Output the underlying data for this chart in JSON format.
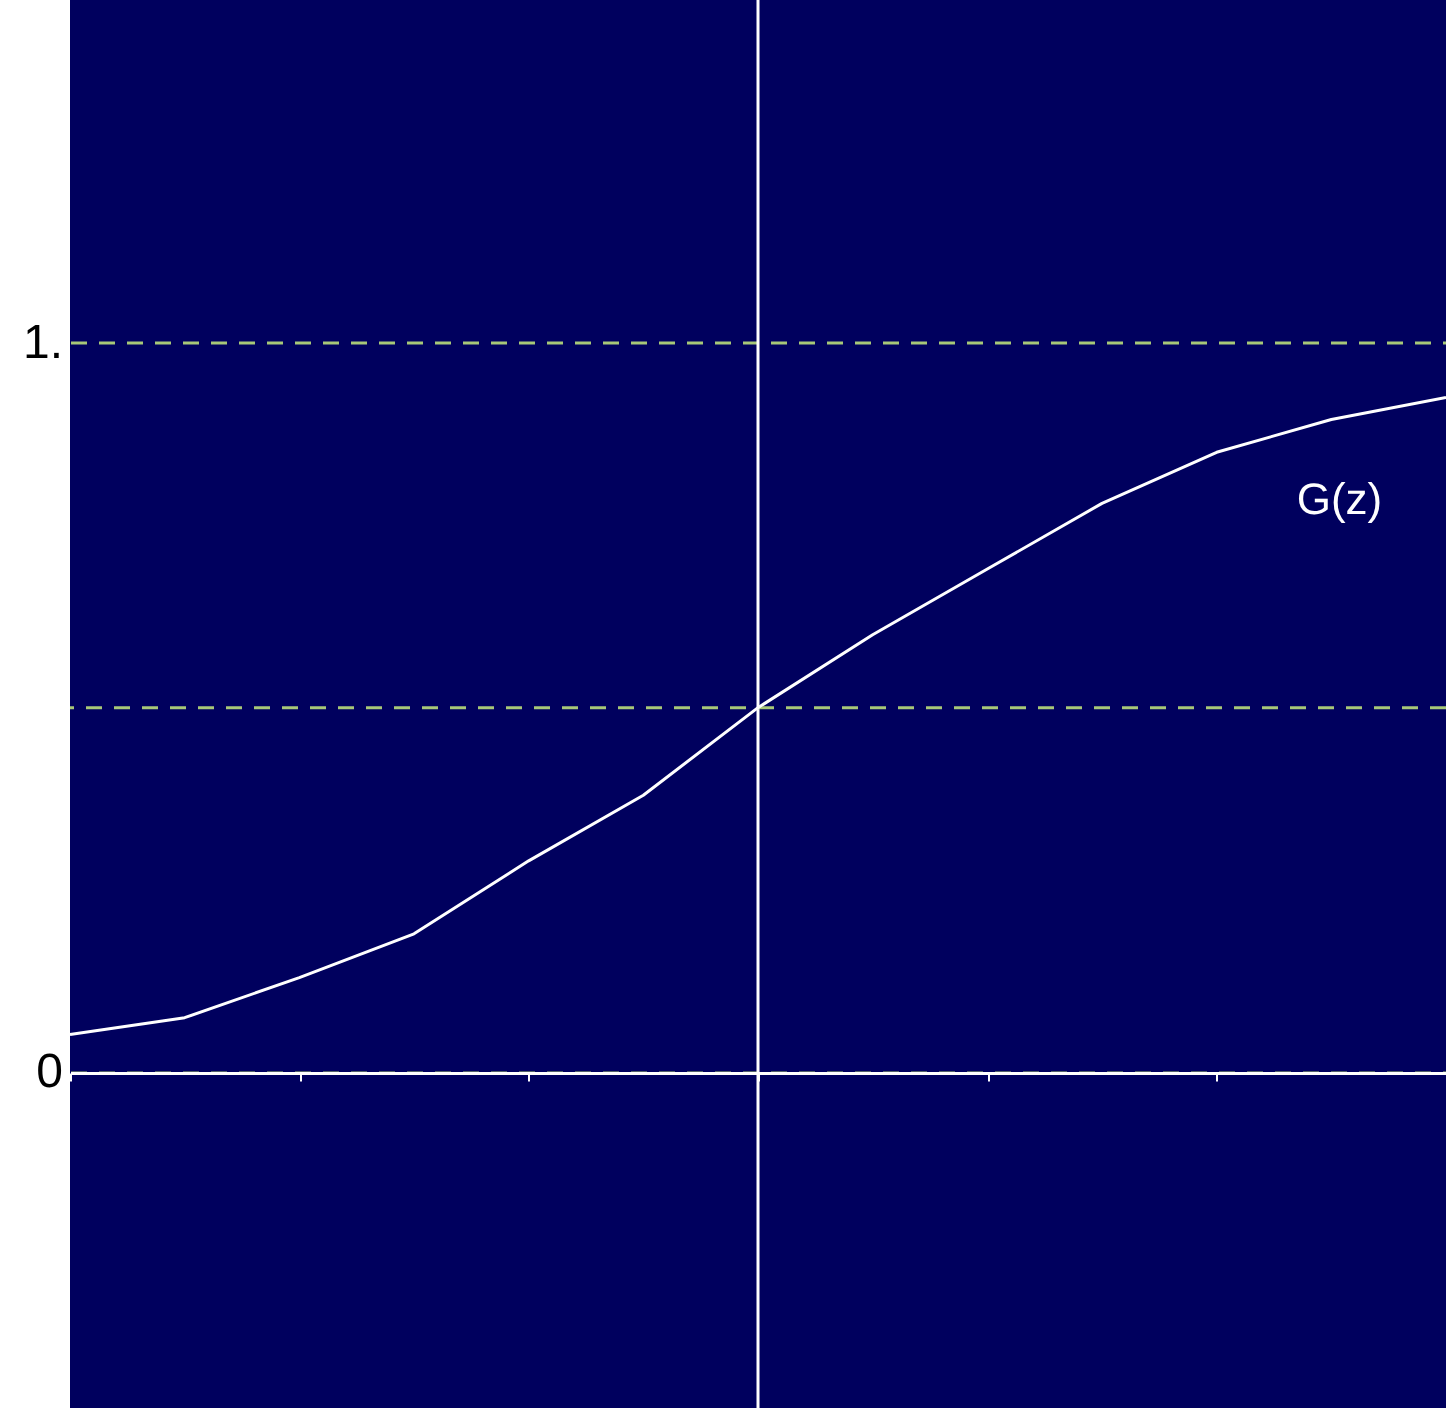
{
  "chart_data": {
    "type": "line",
    "categories": [
      null,
      null,
      null,
      null,
      null,
      null,
      null,
      null,
      null,
      null,
      null,
      null,
      null
    ],
    "series": [
      {
        "name": "G(z)",
        "color": "#ffffff",
        "values": [
          0.052,
          0.075,
          0.13,
          0.19,
          0.29,
          0.38,
          0.5,
          0.6,
          0.69,
          0.78,
          0.85,
          0.895,
          0.925
        ]
      }
    ],
    "ylim": [
      -0.46,
      1.47
    ],
    "yticks": [
      0,
      {
        "value": 1,
        "label": "1."
      }
    ],
    "tick_labels": "y",
    "grid": "y",
    "marker": "none",
    "line_style": "solid",
    "ref_lines": [
      {
        "axis": "y",
        "value": 0.5,
        "color": "#a8c878",
        "line_style": "dashed"
      }
    ]
  }
}
